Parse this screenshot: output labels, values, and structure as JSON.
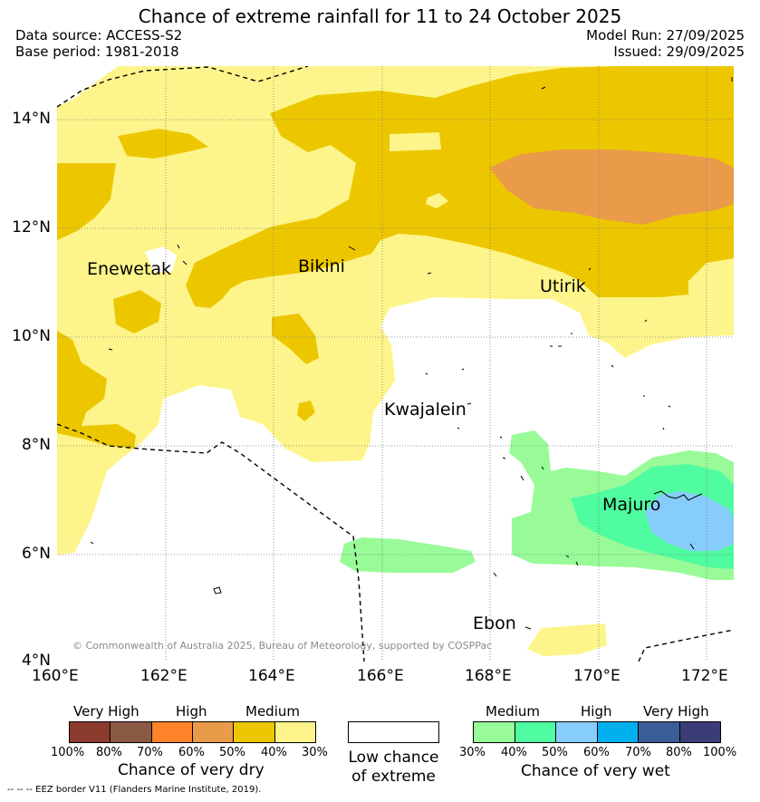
{
  "title": "Chance of extreme rainfall for 11 to 24 October 2025",
  "header": {
    "data_source": "Data source: ACCESS-S2",
    "base_period": "Base period: 1981-2018",
    "model_run": "Model Run: 27/09/2025",
    "issued": "Issued: 29/09/2025"
  },
  "map": {
    "lat_ticks": [
      "14°N",
      "12°N",
      "10°N",
      "8°N",
      "6°N",
      "4°N"
    ],
    "lon_ticks": [
      "160°E",
      "162°E",
      "164°E",
      "166°E",
      "168°E",
      "170°E",
      "172°E"
    ],
    "places": {
      "enewetak": "Enewetak",
      "bikini": "Bikini",
      "utirik": "Utirik",
      "kwajalein": "Kwajalein",
      "majuro": "Majuro",
      "ebon": "Ebon"
    },
    "copyright": "© Commonwealth of Australia 2025, Bureau of Meteorology, supported by COSPPac"
  },
  "legend": {
    "dry": {
      "levels": [
        "Very High",
        "High",
        "Medium"
      ],
      "colors": [
        "#8b3a2e",
        "#8b5a45",
        "#ff8328",
        "#ea9b4a",
        "#ecc700",
        "#fdf58b"
      ],
      "percents": [
        "100%",
        "80%",
        "70%",
        "60%",
        "50%",
        "40%",
        "30%"
      ],
      "caption": "Chance of very dry"
    },
    "low": {
      "caption_1": "Low chance",
      "caption_2": "of extreme"
    },
    "wet": {
      "levels": [
        "Medium",
        "High",
        "Very High"
      ],
      "colors": [
        "#98fb98",
        "#4ffca0",
        "#87cdfb",
        "#00b0ee",
        "#3b5e98",
        "#3c3c78"
      ],
      "percents": [
        "30%",
        "40%",
        "50%",
        "60%",
        "70%",
        "80%",
        "100%"
      ],
      "caption": "Chance of very wet"
    },
    "footnote": "-- -- -- EEZ border V11 (Flanders Marine Institute, 2019)."
  }
}
